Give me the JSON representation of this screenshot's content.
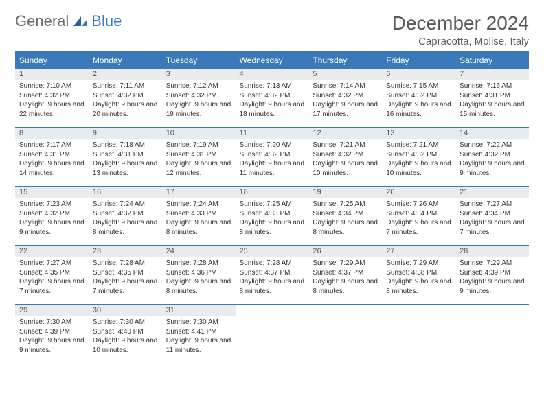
{
  "logo": {
    "general": "General",
    "blue": "Blue"
  },
  "title": "December 2024",
  "location": "Capracotta, Molise, Italy",
  "colors": {
    "accent": "#3a7ab8",
    "header_text": "#ffffff",
    "daynum_bg": "#e8ecef",
    "body_text": "#333333",
    "title_text": "#5a5a5a"
  },
  "dayNames": [
    "Sunday",
    "Monday",
    "Tuesday",
    "Wednesday",
    "Thursday",
    "Friday",
    "Saturday"
  ],
  "weeks": [
    [
      {
        "n": "1",
        "sr": "7:10 AM",
        "ss": "4:32 PM",
        "dl": "9 hours and 22 minutes."
      },
      {
        "n": "2",
        "sr": "7:11 AM",
        "ss": "4:32 PM",
        "dl": "9 hours and 20 minutes."
      },
      {
        "n": "3",
        "sr": "7:12 AM",
        "ss": "4:32 PM",
        "dl": "9 hours and 19 minutes."
      },
      {
        "n": "4",
        "sr": "7:13 AM",
        "ss": "4:32 PM",
        "dl": "9 hours and 18 minutes."
      },
      {
        "n": "5",
        "sr": "7:14 AM",
        "ss": "4:32 PM",
        "dl": "9 hours and 17 minutes."
      },
      {
        "n": "6",
        "sr": "7:15 AM",
        "ss": "4:32 PM",
        "dl": "9 hours and 16 minutes."
      },
      {
        "n": "7",
        "sr": "7:16 AM",
        "ss": "4:31 PM",
        "dl": "9 hours and 15 minutes."
      }
    ],
    [
      {
        "n": "8",
        "sr": "7:17 AM",
        "ss": "4:31 PM",
        "dl": "9 hours and 14 minutes."
      },
      {
        "n": "9",
        "sr": "7:18 AM",
        "ss": "4:31 PM",
        "dl": "9 hours and 13 minutes."
      },
      {
        "n": "10",
        "sr": "7:19 AM",
        "ss": "4:31 PM",
        "dl": "9 hours and 12 minutes."
      },
      {
        "n": "11",
        "sr": "7:20 AM",
        "ss": "4:32 PM",
        "dl": "9 hours and 11 minutes."
      },
      {
        "n": "12",
        "sr": "7:21 AM",
        "ss": "4:32 PM",
        "dl": "9 hours and 10 minutes."
      },
      {
        "n": "13",
        "sr": "7:21 AM",
        "ss": "4:32 PM",
        "dl": "9 hours and 10 minutes."
      },
      {
        "n": "14",
        "sr": "7:22 AM",
        "ss": "4:32 PM",
        "dl": "9 hours and 9 minutes."
      }
    ],
    [
      {
        "n": "15",
        "sr": "7:23 AM",
        "ss": "4:32 PM",
        "dl": "9 hours and 9 minutes."
      },
      {
        "n": "16",
        "sr": "7:24 AM",
        "ss": "4:32 PM",
        "dl": "9 hours and 8 minutes."
      },
      {
        "n": "17",
        "sr": "7:24 AM",
        "ss": "4:33 PM",
        "dl": "9 hours and 8 minutes."
      },
      {
        "n": "18",
        "sr": "7:25 AM",
        "ss": "4:33 PM",
        "dl": "9 hours and 8 minutes."
      },
      {
        "n": "19",
        "sr": "7:25 AM",
        "ss": "4:34 PM",
        "dl": "9 hours and 8 minutes."
      },
      {
        "n": "20",
        "sr": "7:26 AM",
        "ss": "4:34 PM",
        "dl": "9 hours and 7 minutes."
      },
      {
        "n": "21",
        "sr": "7:27 AM",
        "ss": "4:34 PM",
        "dl": "9 hours and 7 minutes."
      }
    ],
    [
      {
        "n": "22",
        "sr": "7:27 AM",
        "ss": "4:35 PM",
        "dl": "9 hours and 7 minutes."
      },
      {
        "n": "23",
        "sr": "7:28 AM",
        "ss": "4:35 PM",
        "dl": "9 hours and 7 minutes."
      },
      {
        "n": "24",
        "sr": "7:28 AM",
        "ss": "4:36 PM",
        "dl": "9 hours and 8 minutes."
      },
      {
        "n": "25",
        "sr": "7:28 AM",
        "ss": "4:37 PM",
        "dl": "9 hours and 8 minutes."
      },
      {
        "n": "26",
        "sr": "7:29 AM",
        "ss": "4:37 PM",
        "dl": "9 hours and 8 minutes."
      },
      {
        "n": "27",
        "sr": "7:29 AM",
        "ss": "4:38 PM",
        "dl": "9 hours and 8 minutes."
      },
      {
        "n": "28",
        "sr": "7:29 AM",
        "ss": "4:39 PM",
        "dl": "9 hours and 9 minutes."
      }
    ],
    [
      {
        "n": "29",
        "sr": "7:30 AM",
        "ss": "4:39 PM",
        "dl": "9 hours and 9 minutes."
      },
      {
        "n": "30",
        "sr": "7:30 AM",
        "ss": "4:40 PM",
        "dl": "9 hours and 10 minutes."
      },
      {
        "n": "31",
        "sr": "7:30 AM",
        "ss": "4:41 PM",
        "dl": "9 hours and 11 minutes."
      },
      null,
      null,
      null,
      null
    ]
  ]
}
